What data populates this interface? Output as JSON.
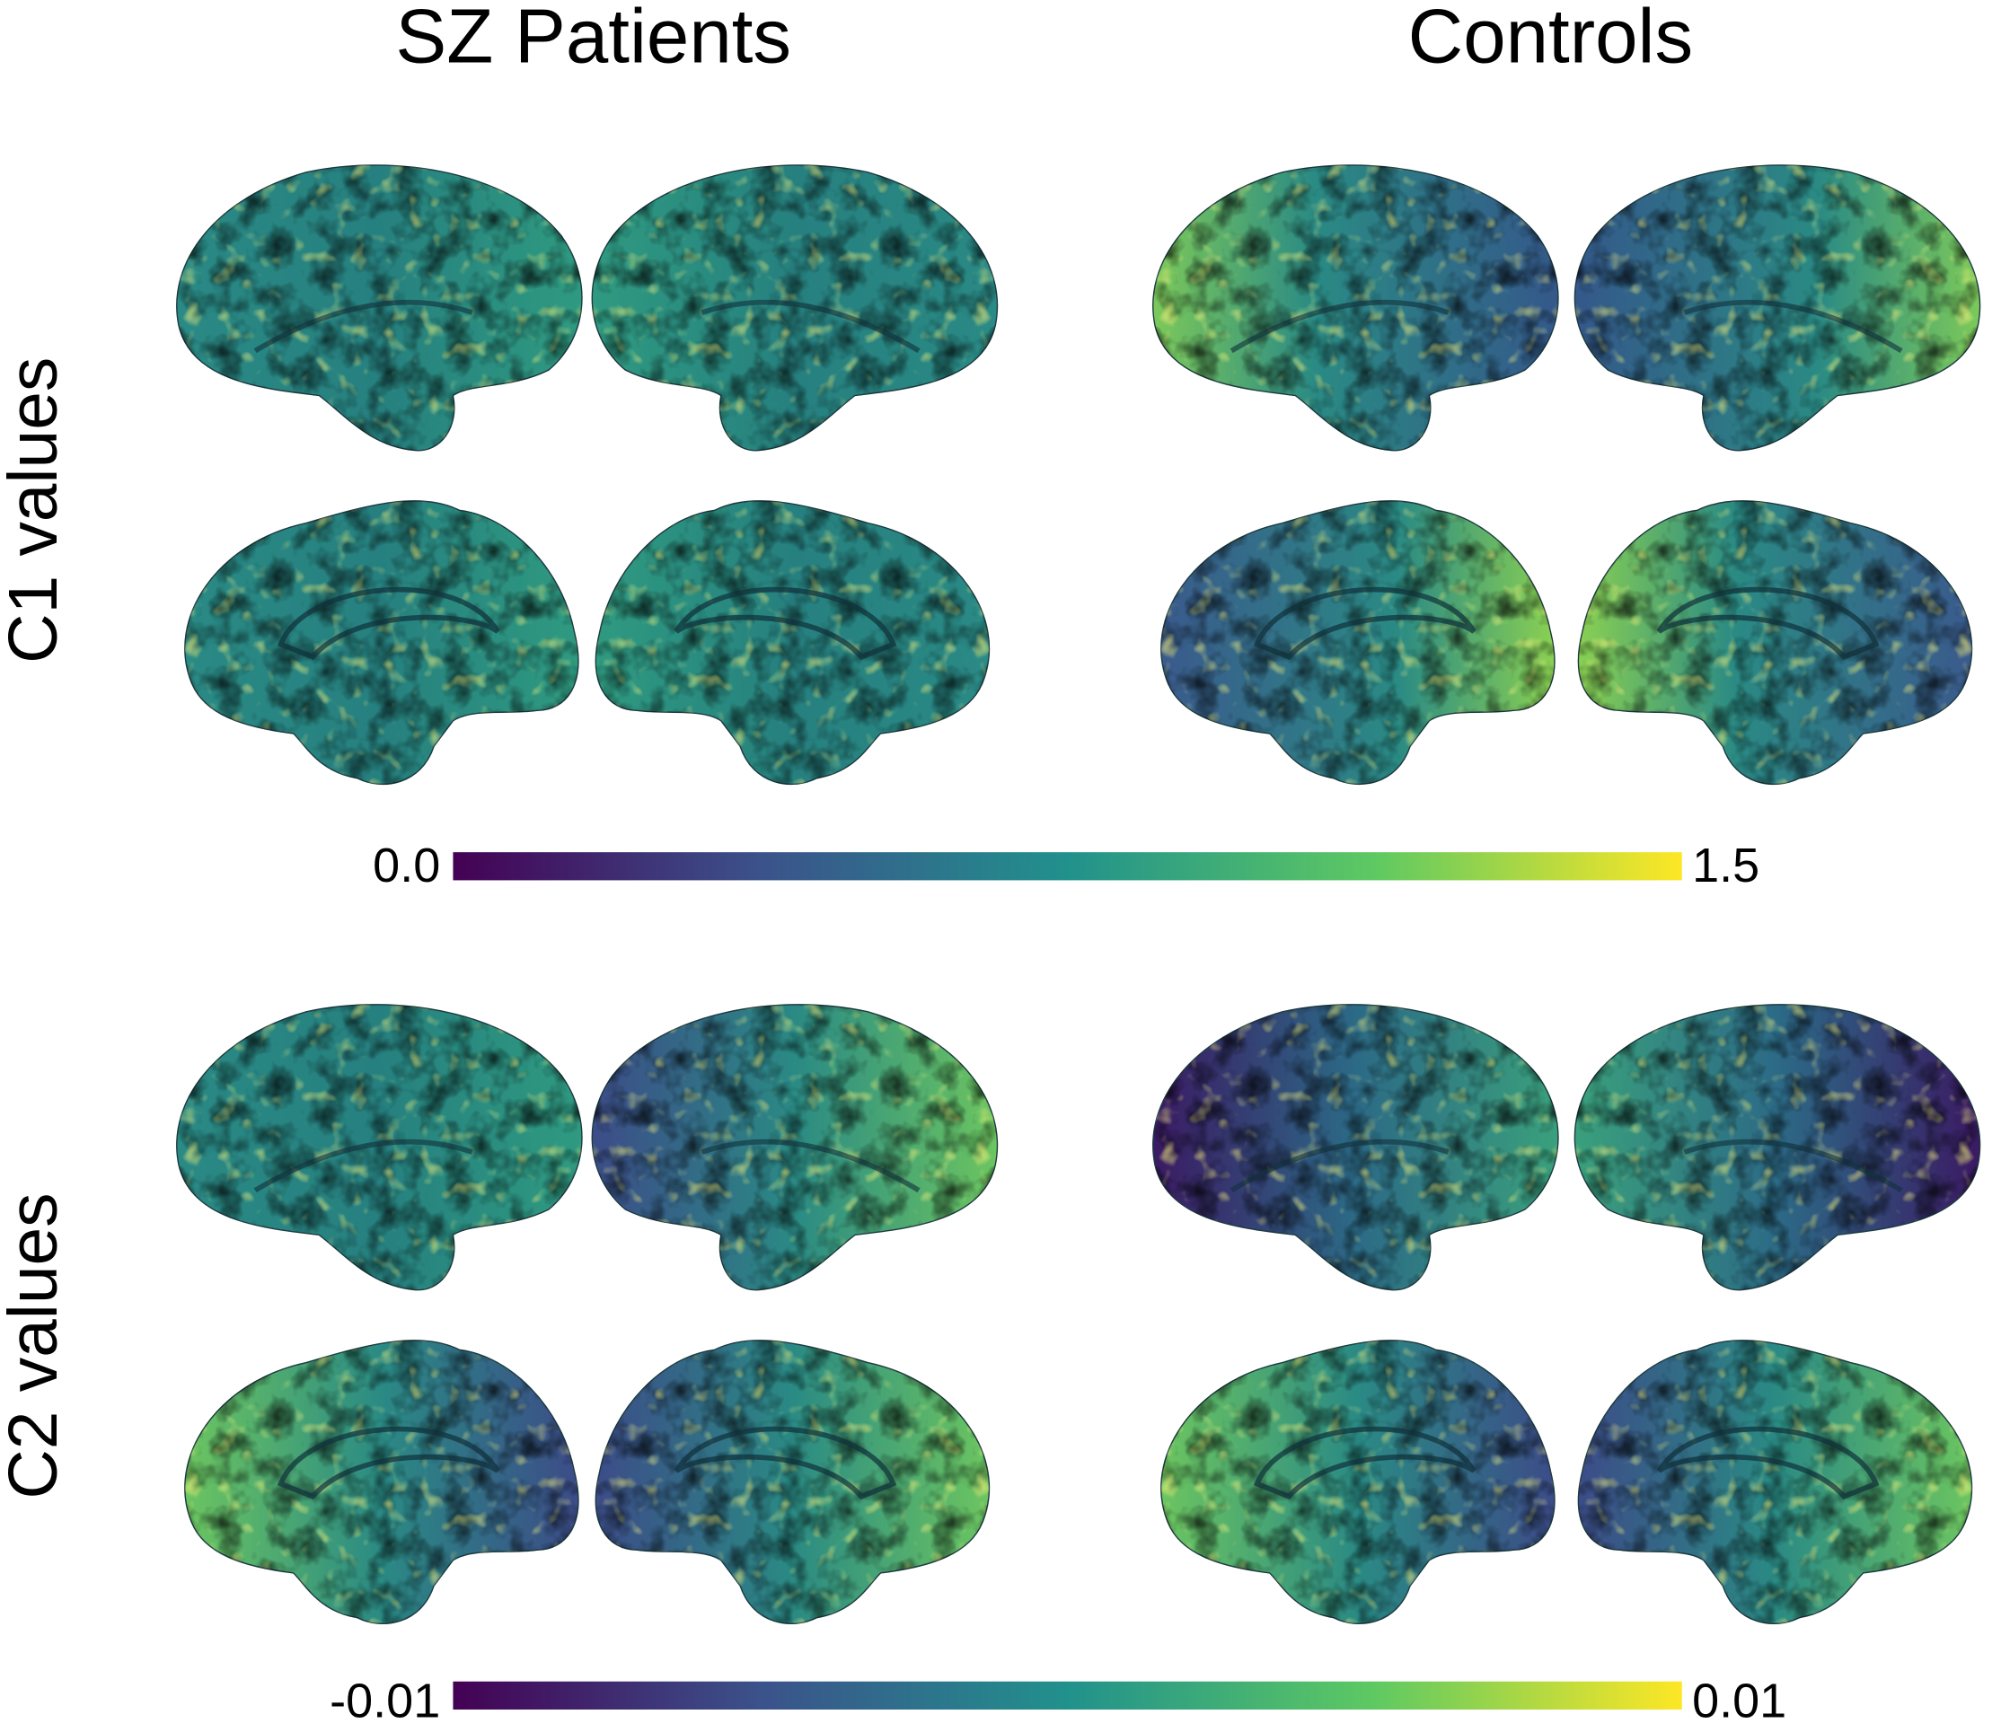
{
  "columns": [
    "SZ Patients",
    "Controls"
  ],
  "rows": [
    "C1 values",
    "C2 values"
  ],
  "colorbars": [
    {
      "min": "0.0",
      "max": "1.5"
    },
    {
      "min": "-0.01",
      "max": "0.01"
    }
  ]
}
